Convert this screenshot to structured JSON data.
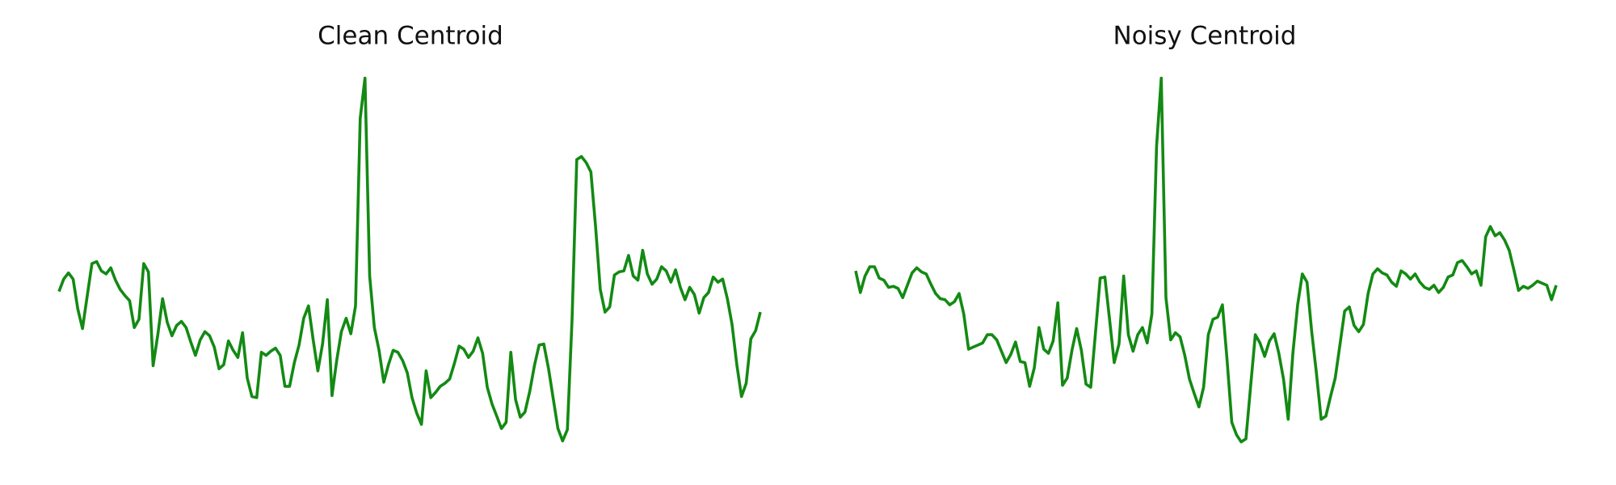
{
  "chart_data": [
    {
      "type": "line",
      "title": "Clean Centroid",
      "color": "#138a13",
      "ylim": [
        20,
        380
      ],
      "values": [
        167,
        179,
        185,
        179,
        150,
        131,
        163,
        194,
        196,
        187,
        184,
        190,
        178,
        169,
        163,
        158,
        132,
        140,
        194,
        186,
        95,
        125,
        160,
        137,
        124,
        134,
        138,
        132,
        118,
        105,
        120,
        128,
        124,
        113,
        92,
        96,
        119,
        110,
        103,
        127,
        83,
        65,
        64,
        108,
        105,
        109,
        112,
        105,
        75,
        75,
        98,
        115,
        141,
        153,
        120,
        90,
        116,
        159,
        66,
        100,
        128,
        141,
        126,
        153,
        335,
        374,
        182,
        132,
        110,
        79,
        96,
        110,
        108,
        100,
        88,
        64,
        49,
        38,
        90,
        64,
        69,
        75,
        78,
        82,
        97,
        114,
        111,
        103,
        109,
        122,
        107,
        74,
        58,
        46,
        34,
        40,
        108,
        62,
        45,
        50,
        70,
        95,
        115,
        116,
        92,
        63,
        34,
        22,
        33,
        140,
        295,
        298,
        292,
        283,
        230,
        169,
        147,
        152,
        183,
        186,
        187,
        202,
        182,
        178,
        207,
        184,
        174,
        179,
        191,
        187,
        176,
        188,
        171,
        159,
        171,
        164,
        146,
        161,
        166,
        181,
        176,
        179,
        160,
        135,
        96,
        65,
        78,
        121,
        129,
        147
      ]
    },
    {
      "type": "line",
      "title": "Noisy Centroid",
      "color": "#138a13",
      "ylim": [
        20,
        380
      ],
      "values": [
        187,
        166,
        182,
        191,
        191,
        180,
        178,
        171,
        172,
        170,
        161,
        173,
        185,
        190,
        186,
        184,
        174,
        165,
        160,
        159,
        154,
        157,
        165,
        145,
        111,
        113,
        115,
        117,
        125,
        125,
        120,
        109,
        98,
        106,
        118,
        99,
        98,
        75,
        93,
        132,
        111,
        107,
        119,
        156,
        76,
        83,
        110,
        131,
        110,
        77,
        74,
        127,
        180,
        181,
        140,
        98,
        116,
        182,
        125,
        109,
        125,
        132,
        117,
        145,
        308,
        374,
        161,
        120,
        127,
        123,
        105,
        82,
        68,
        55,
        74,
        125,
        140,
        142,
        154,
        100,
        40,
        28,
        21,
        24,
        75,
        125,
        117,
        104,
        119,
        126,
        107,
        82,
        43,
        107,
        154,
        184,
        176,
        128,
        88,
        43,
        46,
        65,
        83,
        115,
        148,
        152,
        134,
        128,
        135,
        165,
        184,
        189,
        185,
        183,
        176,
        172,
        187,
        184,
        179,
        184,
        176,
        171,
        169,
        173,
        166,
        171,
        181,
        183,
        195,
        197,
        191,
        184,
        187,
        173,
        220,
        230,
        221,
        224,
        217,
        207,
        188,
        168,
        172,
        170,
        173,
        177,
        175,
        173,
        159,
        173
      ]
    }
  ]
}
